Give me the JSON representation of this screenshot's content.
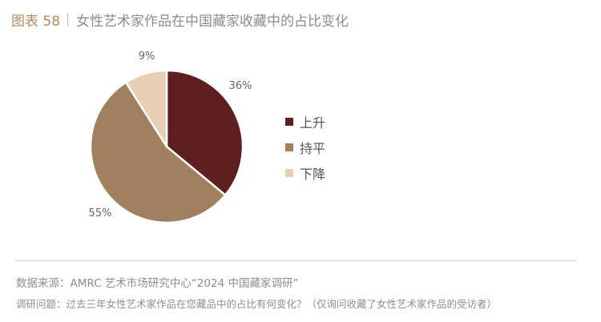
{
  "header": {
    "figure_label": "图表 58",
    "title": "女性艺术家作品在中国藏家收藏中的占比变化"
  },
  "chart_data": {
    "type": "pie",
    "title": "女性艺术家作品在中国藏家收藏中的占比变化",
    "slices": [
      {
        "label": "上升",
        "value": 36,
        "display": "36%",
        "color": "#5e1f21"
      },
      {
        "label": "持平",
        "value": 55,
        "display": "55%",
        "color": "#a0805e"
      },
      {
        "label": "下降",
        "value": 9,
        "display": "9%",
        "color": "#e8cfb4"
      }
    ],
    "legend_position": "right"
  },
  "footer": {
    "source": "数据来源：AMRC 艺术市场研究中心“2024 中国藏家调研”",
    "question": "调研问题：过去三年女性艺术家作品在您藏品中的占比有何变化？（仅询问收藏了女性艺术家作品的受访者）"
  }
}
